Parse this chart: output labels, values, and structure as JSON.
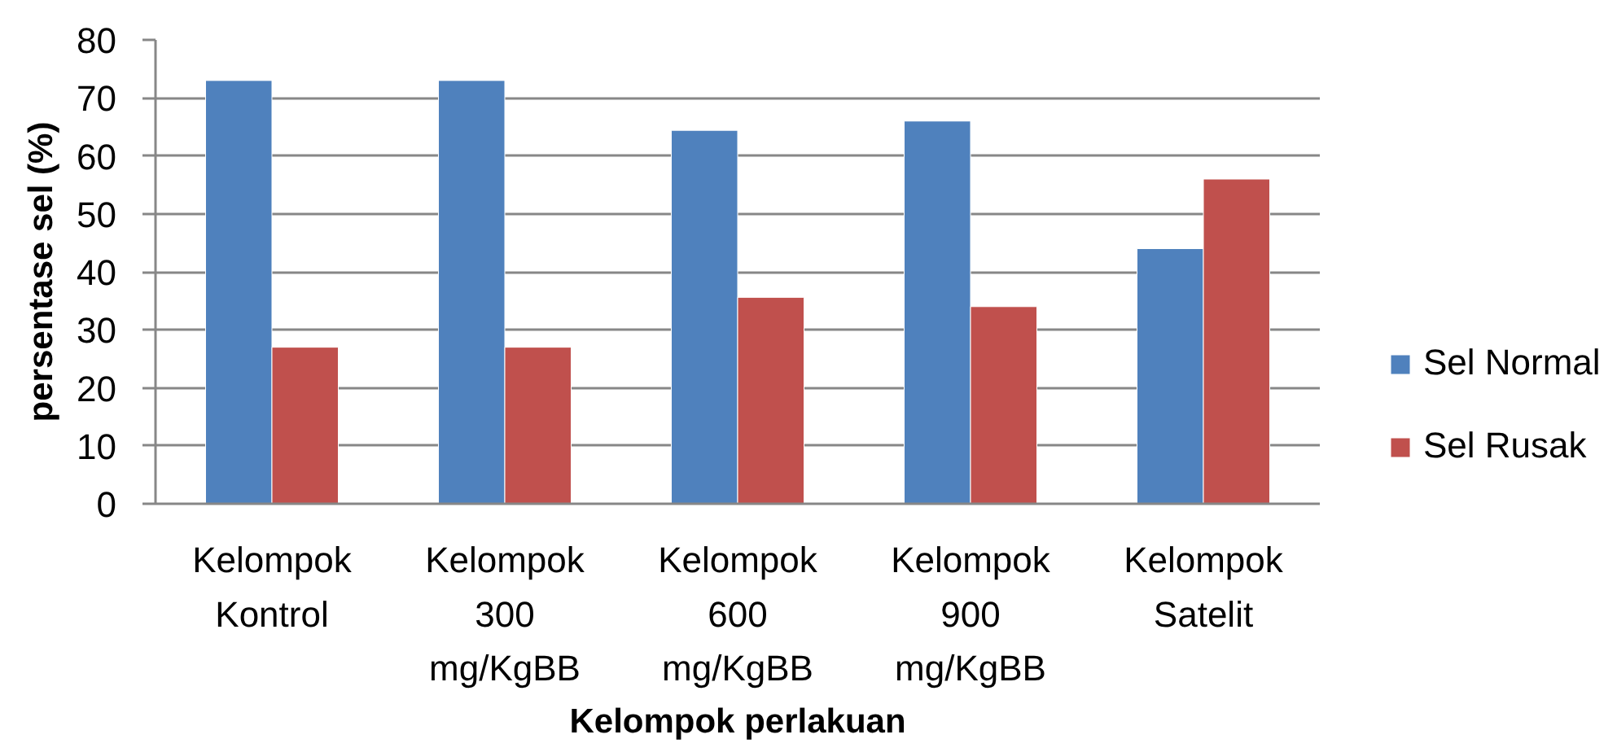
{
  "chart_data": {
    "type": "bar",
    "xlabel": "Kelompok perlakuan",
    "ylabel": "persentase sel (%)",
    "categories": [
      "Kelompok Kontrol",
      "Kelompok 300 mg/KgBB",
      "Kelompok 600 mg/KgBB",
      "Kelompok 900 mg/KgBB",
      "Kelompok Satelit"
    ],
    "series": [
      {
        "name": "Sel Normal",
        "color": "#4f81bd",
        "values": [
          73,
          73,
          64.4,
          66,
          44
        ]
      },
      {
        "name": "Sel Rusak",
        "color": "#c0504d",
        "values": [
          27,
          27,
          35.6,
          34,
          56
        ]
      }
    ],
    "ylim": [
      0,
      80
    ],
    "yticks": [
      0,
      10,
      20,
      30,
      40,
      50,
      60,
      70,
      80
    ],
    "grid": "y",
    "legend": "right"
  }
}
